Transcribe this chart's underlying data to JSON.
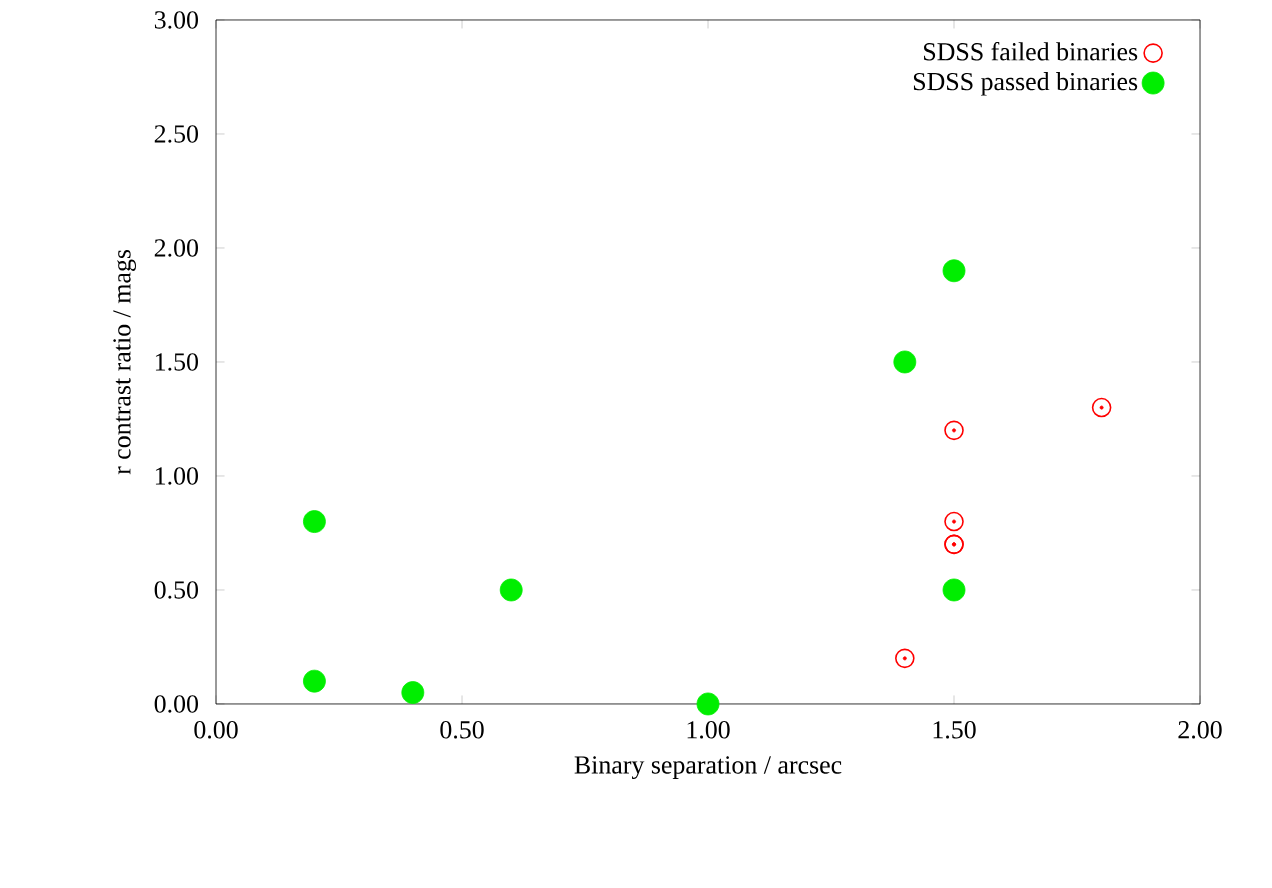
{
  "chart_data": {
    "type": "scatter",
    "xlabel": "Binary separation / arcsec",
    "ylabel": "r contrast ratio / mags",
    "xlim": [
      0,
      2
    ],
    "ylim": [
      0,
      3
    ],
    "xticks": [
      {
        "value": 0,
        "label": "0.00"
      },
      {
        "value": 0.5,
        "label": "0.50"
      },
      {
        "value": 1,
        "label": "1.00"
      },
      {
        "value": 1.5,
        "label": "1.50"
      },
      {
        "value": 2,
        "label": "2.00"
      }
    ],
    "yticks": [
      {
        "value": 0,
        "label": "0.00"
      },
      {
        "value": 0.5,
        "label": "0.50"
      },
      {
        "value": 1,
        "label": "1.00"
      },
      {
        "value": 1.5,
        "label": "1.50"
      },
      {
        "value": 2,
        "label": "2.00"
      },
      {
        "value": 2.5,
        "label": "2.50"
      },
      {
        "value": 3,
        "label": "3.00"
      }
    ],
    "legend": "top right",
    "marker": "circle",
    "grid": false,
    "series": [
      {
        "name": "SDSS failed binaries",
        "color": "#ff0000",
        "x": [
          1.4,
          1.5,
          1.5,
          1.5,
          1.5,
          1.8
        ],
        "values": [
          0.2,
          0.7,
          0.7,
          0.8,
          1.2,
          1.3
        ]
      },
      {
        "name": "SDSS passed binaries",
        "color": "#00ee00",
        "x": [
          0.2,
          0.2,
          0.4,
          0.6,
          1.0,
          1.4,
          1.5,
          1.5
        ],
        "values": [
          0.8,
          0.1,
          0.05,
          0.5,
          0.0,
          1.5,
          1.9,
          0.5
        ]
      }
    ]
  }
}
